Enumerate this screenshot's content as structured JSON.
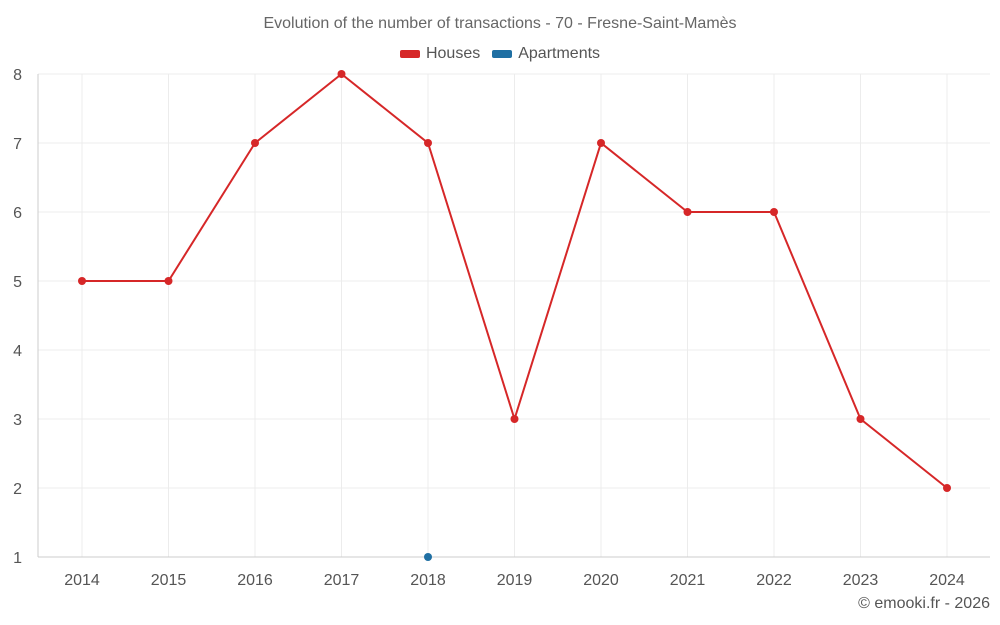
{
  "chart_data": {
    "type": "line",
    "title": "Evolution of the number of transactions - 70 - Fresne-Saint-Mamès",
    "xlabel": "",
    "ylabel": "",
    "categories": [
      "2014",
      "2015",
      "2016",
      "2017",
      "2018",
      "2019",
      "2020",
      "2021",
      "2022",
      "2023",
      "2024"
    ],
    "ylim": [
      1,
      8
    ],
    "yticks": [
      1,
      2,
      3,
      4,
      5,
      6,
      7,
      8
    ],
    "grid": true,
    "legend_position": "top-center",
    "series": [
      {
        "name": "Houses",
        "color": "#d62728",
        "values": [
          5,
          5,
          7,
          8,
          7,
          3,
          7,
          6,
          6,
          3,
          2
        ]
      },
      {
        "name": "Apartments",
        "color": "#1f6fa3",
        "values": [
          null,
          null,
          null,
          null,
          1,
          null,
          null,
          null,
          null,
          null,
          null
        ]
      }
    ]
  },
  "footer": {
    "copyright": "© emooki.fr - 2026"
  }
}
